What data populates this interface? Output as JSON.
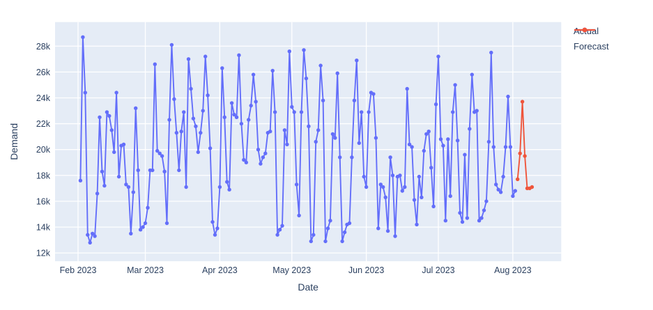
{
  "legend": {
    "items": [
      {
        "label": "Actual",
        "color": "#636efa"
      },
      {
        "label": "Forecast",
        "color": "#ef553b"
      }
    ]
  },
  "chart_data": {
    "type": "line",
    "title": "",
    "xlabel": "Date",
    "ylabel": "Demand",
    "x_tick_labels": [
      "Feb 2023",
      "Mar 2023",
      "Apr 2023",
      "May 2023",
      "Jun 2023",
      "Jul 2023",
      "Aug 2023"
    ],
    "y_tick_labels": [
      "12k",
      "14k",
      "16k",
      "18k",
      "20k",
      "22k",
      "24k",
      "26k",
      "28k"
    ],
    "ylim_k": [
      11.3,
      29.9
    ],
    "grid": true,
    "plot_bgcolor": "#e5ecf6",
    "gridline_color": "#ffffff",
    "legend_position": "top-right",
    "frequency": "daily",
    "units": "thousands",
    "series": [
      {
        "name": "Actual",
        "color": "#636efa",
        "start_date": "2023-02-02",
        "values_k": [
          17.6,
          28.7,
          24.4,
          13.4,
          12.8,
          13.5,
          13.3,
          16.6,
          22.5,
          18.3,
          17.2,
          22.9,
          22.6,
          21.5,
          19.8,
          24.4,
          17.9,
          20.3,
          20.4,
          17.3,
          17.1,
          13.5,
          16.7,
          23.2,
          18.4,
          13.8,
          14.0,
          14.3,
          15.5,
          18.4,
          18.4,
          26.6,
          19.9,
          19.7,
          19.5,
          18.3,
          14.3,
          22.3,
          28.1,
          23.9,
          21.3,
          18.4,
          21.4,
          22.9,
          17.1,
          27.0,
          24.7,
          22.4,
          21.8,
          19.8,
          21.3,
          23.0,
          27.2,
          24.2,
          20.1,
          14.4,
          13.4,
          13.9,
          17.1,
          26.3,
          22.5,
          17.5,
          16.9,
          23.6,
          22.7,
          22.5,
          27.3,
          22.0,
          19.2,
          19.0,
          22.3,
          23.4,
          25.8,
          23.7,
          20.0,
          18.9,
          19.4,
          19.7,
          21.3,
          21.4,
          26.1,
          22.9,
          13.4,
          13.8,
          14.1,
          21.5,
          20.4,
          27.6,
          23.3,
          22.9,
          17.3,
          14.9,
          22.9,
          27.7,
          25.5,
          21.8,
          12.9,
          13.4,
          20.6,
          21.5,
          26.5,
          23.8,
          12.9,
          13.9,
          14.5,
          21.2,
          20.9,
          25.9,
          19.4,
          12.9,
          13.6,
          14.2,
          14.3,
          19.4,
          23.8,
          26.9,
          20.5,
          22.9,
          17.9,
          17.1,
          22.9,
          24.4,
          24.3,
          20.9,
          13.9,
          17.3,
          17.1,
          16.3,
          13.7,
          19.4,
          18.0,
          13.3,
          17.9,
          18.0,
          16.8,
          17.1,
          24.7,
          20.4,
          20.2,
          16.1,
          14.2,
          17.9,
          16.3,
          19.9,
          21.2,
          21.4,
          18.6,
          15.6,
          23.5,
          27.2,
          20.8,
          20.3,
          14.5,
          20.8,
          16.4,
          22.9,
          25.0,
          20.7,
          15.1,
          14.4,
          19.6,
          14.7,
          21.6,
          25.8,
          22.9,
          23.0,
          14.5,
          14.7,
          15.3,
          16.0,
          20.6,
          27.5,
          20.2,
          17.3,
          16.9,
          16.7,
          17.9,
          20.2,
          24.1,
          20.2,
          16.4,
          16.8
        ]
      },
      {
        "name": "Forecast",
        "color": "#ef553b",
        "start_date": "2023-08-03",
        "values_k": [
          17.7,
          19.7,
          23.7,
          19.5,
          17.0,
          17.0,
          17.1
        ]
      }
    ]
  }
}
